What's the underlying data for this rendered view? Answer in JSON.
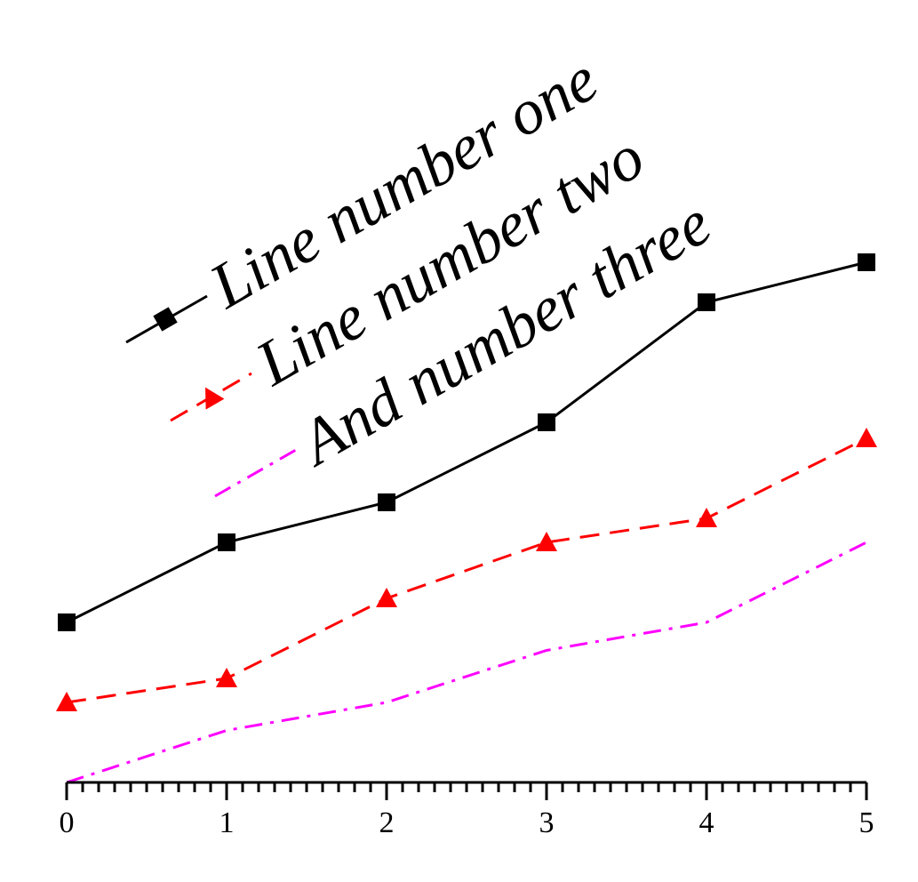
{
  "chart_data": {
    "type": "line",
    "title": "",
    "xlabel": "",
    "ylabel": "",
    "x": [
      0,
      1,
      2,
      3,
      4,
      5
    ],
    "xlim": [
      0,
      5
    ],
    "ylim": [
      0,
      6.4
    ],
    "x_ticks": [
      "0",
      "1",
      "2",
      "3",
      "4",
      "5"
    ],
    "y_axis_visible": false,
    "grid": false,
    "legend_placement": "upper-left, rotated",
    "series": [
      {
        "name": "Line number one",
        "values": [
          2,
          3,
          3.5,
          4.5,
          6,
          6.5
        ],
        "color": "#000000",
        "style": "solid",
        "marker": "square"
      },
      {
        "name": "Line number two",
        "values": [
          1,
          1.3,
          2.3,
          3,
          3.3,
          4.3
        ],
        "color": "#ff0000",
        "style": "dashed",
        "marker": "triangle"
      },
      {
        "name": "And number three",
        "values": [
          0,
          0.65,
          1,
          1.65,
          2,
          3
        ],
        "color": "#ff00ff",
        "style": "dash-dot",
        "marker": "none"
      }
    ]
  }
}
